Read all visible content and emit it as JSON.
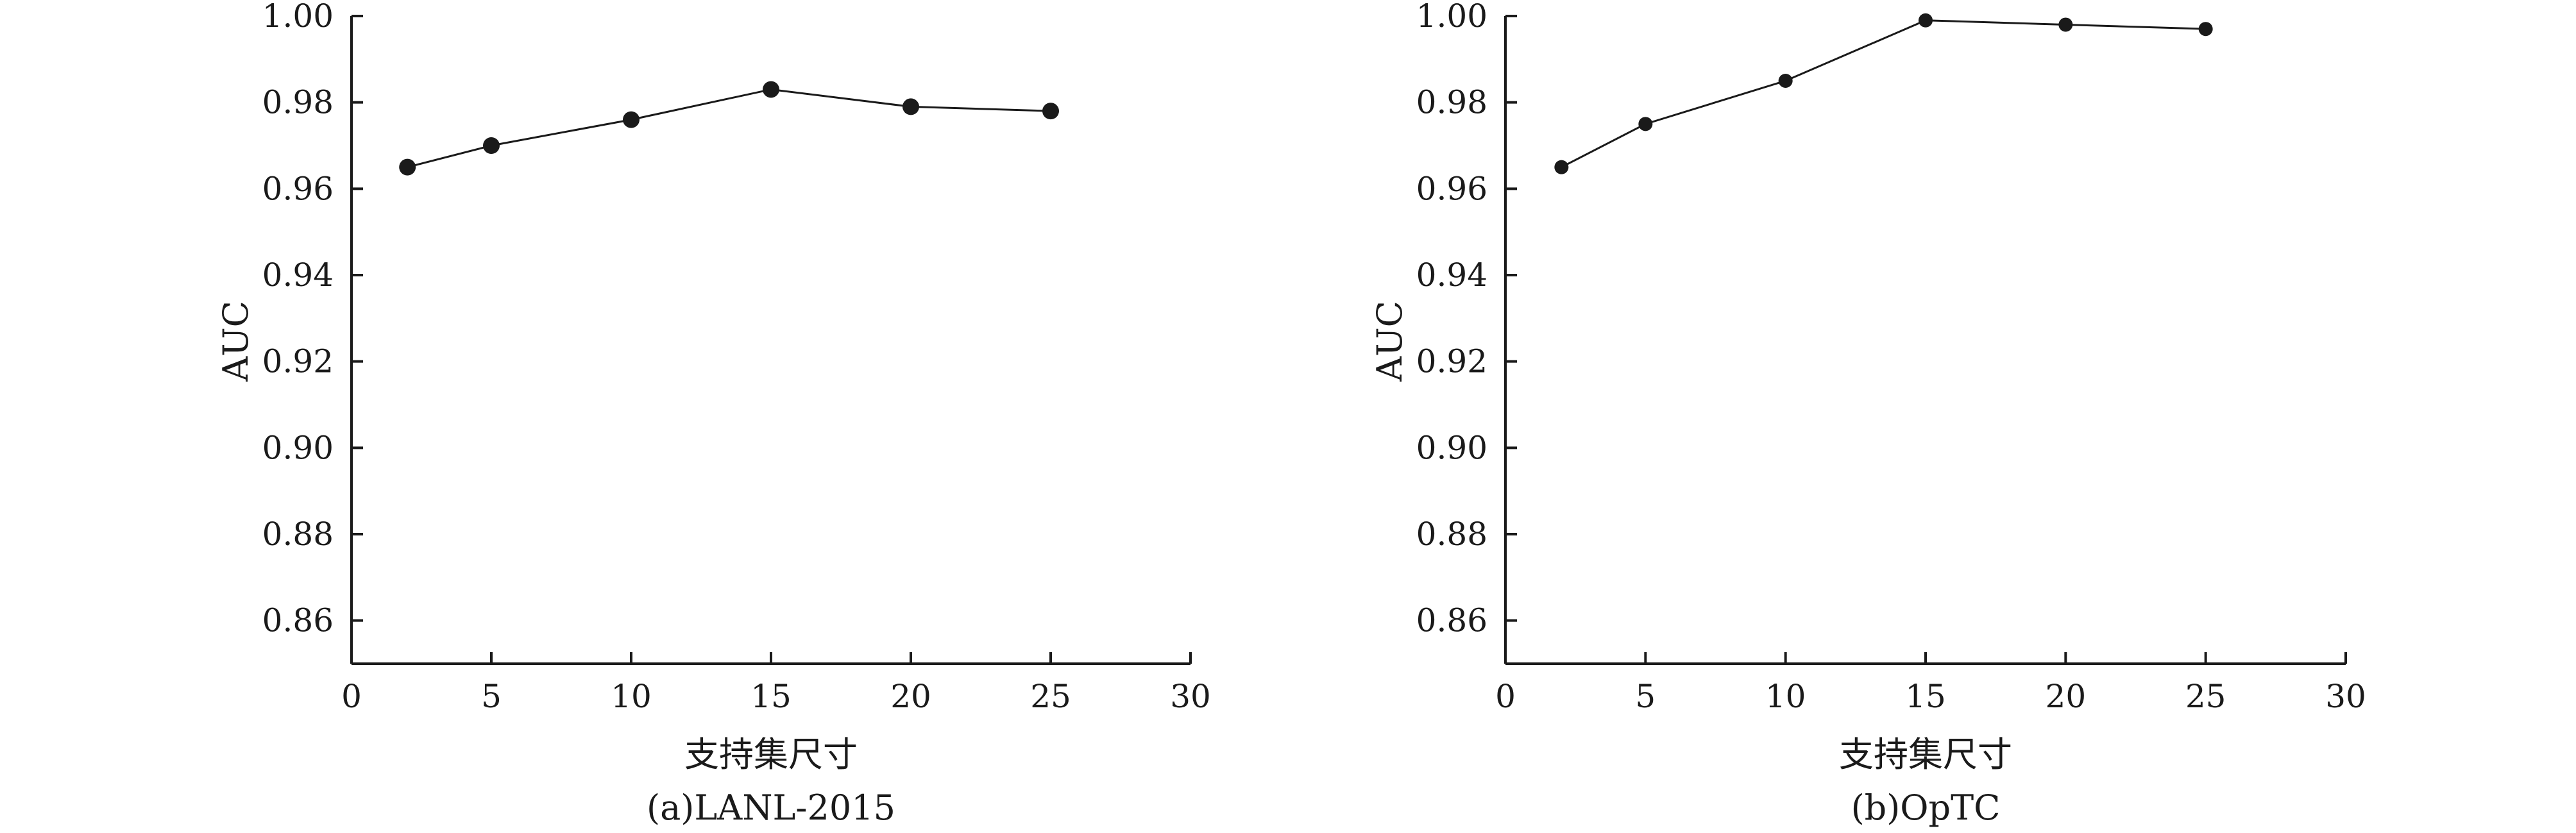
{
  "chart_data": [
    {
      "type": "line",
      "caption": "(a)LANL-2015",
      "xlabel": "支持集尺寸",
      "ylabel": "AUC",
      "xlim": [
        0,
        30
      ],
      "ylim": [
        0.85,
        1.0
      ],
      "xticks": [
        0,
        5,
        10,
        15,
        20,
        25,
        30
      ],
      "xtick_labels": [
        "0",
        "5",
        "10",
        "15",
        "20",
        "25",
        "30"
      ],
      "yticks": [
        0.86,
        0.88,
        0.9,
        0.92,
        0.94,
        0.96,
        0.98,
        1.0
      ],
      "ytick_labels": [
        "0.86",
        "0.88",
        "0.90",
        "0.92",
        "0.94",
        "0.96",
        "0.98",
        "1.00"
      ],
      "grid": false,
      "marker": "circle",
      "series": [
        {
          "x": [
            2,
            5,
            10,
            15,
            20,
            25
          ],
          "values": [
            0.965,
            0.97,
            0.976,
            0.983,
            0.979,
            0.978
          ]
        }
      ]
    },
    {
      "type": "line",
      "caption": "(b)OpTC",
      "xlabel": "支持集尺寸",
      "ylabel": "AUC",
      "xlim": [
        0,
        30
      ],
      "ylim": [
        0.85,
        1.0
      ],
      "xticks": [
        0,
        5,
        10,
        15,
        20,
        25,
        30
      ],
      "xtick_labels": [
        "0",
        "5",
        "10",
        "15",
        "20",
        "25",
        "30"
      ],
      "yticks": [
        0.86,
        0.88,
        0.9,
        0.92,
        0.94,
        0.96,
        0.98,
        1.0
      ],
      "ytick_labels": [
        "0.86",
        "0.88",
        "0.90",
        "0.92",
        "0.94",
        "0.96",
        "0.98",
        "1.00"
      ],
      "grid": false,
      "marker": "circle",
      "series": [
        {
          "x": [
            2,
            5,
            10,
            15,
            20,
            25
          ],
          "values": [
            0.965,
            0.975,
            0.985,
            0.999,
            0.998,
            0.997
          ]
        }
      ]
    }
  ]
}
